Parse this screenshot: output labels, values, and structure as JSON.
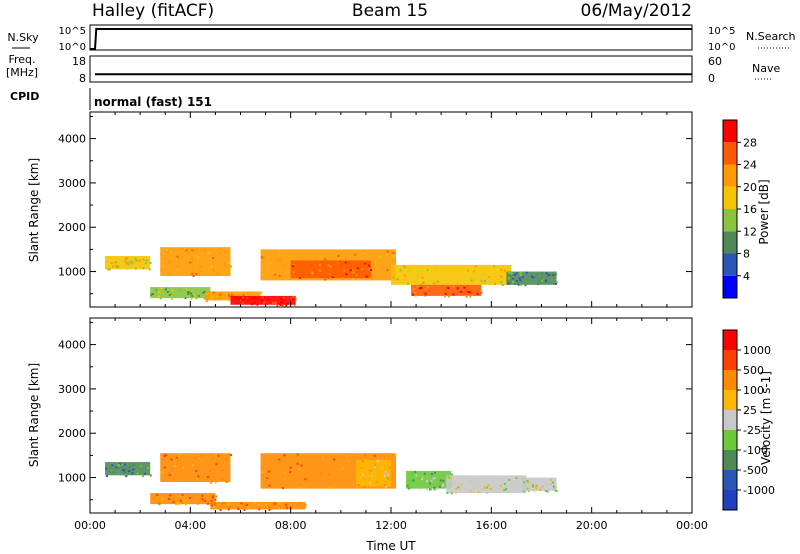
{
  "header": {
    "station": "Halley (fitACF)",
    "beam": "Beam 15",
    "date": "06/May/2012"
  },
  "chart_data": [
    {
      "type": "line",
      "panel": "nsky-nsearch",
      "left_label": "N.Sky",
      "right_label": "N.Search",
      "y_ticks_left": [
        "10^5",
        "10^0"
      ],
      "y_ticks_right": [
        "10^5",
        "10^0"
      ],
      "description_series": [
        {
          "name": "N.Sky",
          "x": [
            0.0,
            0.2,
            0.25,
            24.0
          ],
          "y": [
            1,
            1,
            100000,
            100000
          ]
        }
      ]
    },
    {
      "type": "line",
      "panel": "freq-nave",
      "left_label_top": "Freq.",
      "left_label_bottom": "[MHz]",
      "right_label": "Nave",
      "y_ticks_left": [
        "18",
        "8"
      ],
      "y_ticks_right": [
        "60",
        "0"
      ],
      "series": [
        {
          "name": "Freq.",
          "x": [
            0.2,
            24.0
          ],
          "y": [
            11,
            11
          ]
        }
      ]
    },
    {
      "type": "table",
      "panel": "cpid",
      "label": "CPID",
      "value": "normal (fast) 151"
    },
    {
      "type": "heatmap",
      "panel": "power",
      "ylabel": "Slant Range [km]",
      "xlim": [
        0,
        24
      ],
      "ylim": [
        200,
        4600
      ],
      "y_ticks": [
        "4000",
        "3000",
        "2000",
        "1000"
      ],
      "y_tick_values": [
        4000,
        3000,
        2000,
        1000
      ],
      "colorbar": {
        "label": "Power [dB]",
        "ticks": [
          "28",
          "24",
          "20",
          "16",
          "12",
          "8",
          "4"
        ],
        "colors": [
          "#0000ff",
          "#2c55b8",
          "#4f8a56",
          "#8ac43f",
          "#f5c300",
          "#ff9900",
          "#ff5a00",
          "#ff0000"
        ]
      },
      "regions": [
        {
          "x0": 0.6,
          "x1": 2.4,
          "y0": 1050,
          "y1": 1350,
          "level": 4
        },
        {
          "x0": 2.8,
          "x1": 5.6,
          "y0": 900,
          "y1": 1550,
          "level": 5
        },
        {
          "x0": 2.4,
          "x1": 4.8,
          "y0": 400,
          "y1": 650,
          "level": 3
        },
        {
          "x0": 4.6,
          "x1": 6.8,
          "y0": 350,
          "y1": 550,
          "level": 5
        },
        {
          "x0": 5.6,
          "x1": 8.2,
          "y0": 250,
          "y1": 450,
          "level": 7
        },
        {
          "x0": 6.8,
          "x1": 12.2,
          "y0": 800,
          "y1": 1500,
          "level": 5
        },
        {
          "x0": 8.0,
          "x1": 11.2,
          "y0": 850,
          "y1": 1250,
          "level": 6
        },
        {
          "x0": 12.0,
          "x1": 16.8,
          "y0": 700,
          "y1": 1150,
          "level": 4
        },
        {
          "x0": 12.8,
          "x1": 15.6,
          "y0": 450,
          "y1": 700,
          "level": 6
        },
        {
          "x0": 16.6,
          "x1": 18.6,
          "y0": 700,
          "y1": 1000,
          "level": 2
        }
      ]
    },
    {
      "type": "heatmap",
      "panel": "velocity",
      "ylabel": "Slant Range [km]",
      "xlabel": "Time UT",
      "xlim": [
        0,
        24
      ],
      "ylim": [
        200,
        4600
      ],
      "x_ticks": [
        "00:00",
        "04:00",
        "08:00",
        "12:00",
        "16:00",
        "20:00",
        "00:00"
      ],
      "x_tick_values": [
        0,
        4,
        8,
        12,
        16,
        20,
        24
      ],
      "y_ticks": [
        "4000",
        "3000",
        "2000",
        "1000"
      ],
      "y_tick_values": [
        4000,
        3000,
        2000,
        1000
      ],
      "colorbar": {
        "label": "Velocity [m s-1]",
        "ticks": [
          "1000",
          "500",
          "100",
          "25",
          "-25",
          "-100",
          "-500",
          "-1000"
        ],
        "colors": [
          "#2040c0",
          "#2c55b8",
          "#4f8a56",
          "#6cc83a",
          "#c8c8c8",
          "#ffb800",
          "#ff8a00",
          "#ff4000",
          "#ff0000"
        ]
      },
      "regions": [
        {
          "x0": 0.6,
          "x1": 2.4,
          "y0": 1050,
          "y1": 1350,
          "level": 2
        },
        {
          "x0": 2.8,
          "x1": 5.6,
          "y0": 900,
          "y1": 1550,
          "level": 6
        },
        {
          "x0": 2.4,
          "x1": 5.0,
          "y0": 400,
          "y1": 650,
          "level": 6
        },
        {
          "x0": 4.8,
          "x1": 8.6,
          "y0": 280,
          "y1": 450,
          "level": 6
        },
        {
          "x0": 6.8,
          "x1": 12.2,
          "y0": 750,
          "y1": 1550,
          "level": 6
        },
        {
          "x0": 10.6,
          "x1": 12.0,
          "y0": 800,
          "y1": 1400,
          "level": 5
        },
        {
          "x0": 12.6,
          "x1": 14.4,
          "y0": 750,
          "y1": 1150,
          "level": 3
        },
        {
          "x0": 14.2,
          "x1": 17.4,
          "y0": 650,
          "y1": 1050,
          "level": 4
        },
        {
          "x0": 17.2,
          "x1": 18.6,
          "y0": 700,
          "y1": 1000,
          "level": 4
        }
      ]
    }
  ]
}
